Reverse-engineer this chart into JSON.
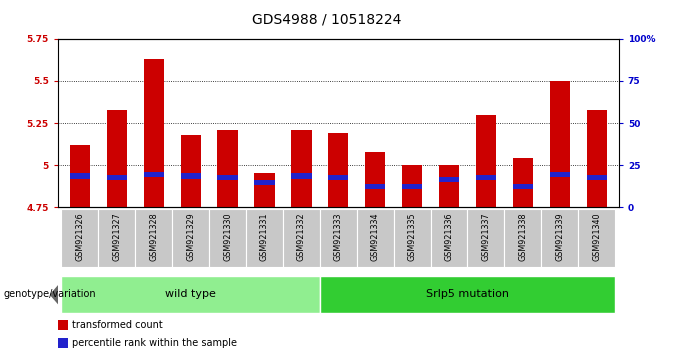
{
  "title": "GDS4988 / 10518224",
  "samples": [
    "GSM921326",
    "GSM921327",
    "GSM921328",
    "GSM921329",
    "GSM921330",
    "GSM921331",
    "GSM921332",
    "GSM921333",
    "GSM921334",
    "GSM921335",
    "GSM921336",
    "GSM921337",
    "GSM921338",
    "GSM921339",
    "GSM921340"
  ],
  "red_values": [
    5.12,
    5.33,
    5.63,
    5.18,
    5.21,
    4.95,
    5.21,
    5.19,
    5.08,
    5.0,
    5.0,
    5.3,
    5.04,
    5.5,
    5.33
  ],
  "blue_values": [
    4.935,
    4.925,
    4.945,
    4.935,
    4.925,
    4.895,
    4.935,
    4.925,
    4.875,
    4.875,
    4.915,
    4.925,
    4.875,
    4.945,
    4.925
  ],
  "ymin": 4.75,
  "ymax": 5.75,
  "yticks": [
    4.75,
    5.0,
    5.25,
    5.5,
    5.75
  ],
  "ytick_labels": [
    "4.75",
    "5",
    "5.25",
    "5.5",
    "5.75"
  ],
  "right_yticks": [
    0,
    25,
    50,
    75,
    100
  ],
  "right_ytick_labels": [
    "0",
    "25",
    "50",
    "75",
    "100%"
  ],
  "bar_width": 0.55,
  "red_color": "#CC0000",
  "blue_color": "#2222CC",
  "bar_base": 4.75,
  "blue_bar_height": 0.03,
  "groups": [
    {
      "label": "wild type",
      "start": 0,
      "end": 7,
      "color": "#90EE90"
    },
    {
      "label": "Srlp5 mutation",
      "start": 7,
      "end": 15,
      "color": "#32CD32"
    }
  ],
  "legend_items": [
    {
      "color": "#CC0000",
      "label": "transformed count"
    },
    {
      "color": "#2222CC",
      "label": "percentile rank within the sample"
    }
  ],
  "genotype_label": "genotype/variation",
  "title_fontsize": 10,
  "tick_fontsize": 6.5,
  "left_tick_color": "#CC0000",
  "right_tick_color": "#0000CC",
  "sample_box_color": "#c8c8c8"
}
